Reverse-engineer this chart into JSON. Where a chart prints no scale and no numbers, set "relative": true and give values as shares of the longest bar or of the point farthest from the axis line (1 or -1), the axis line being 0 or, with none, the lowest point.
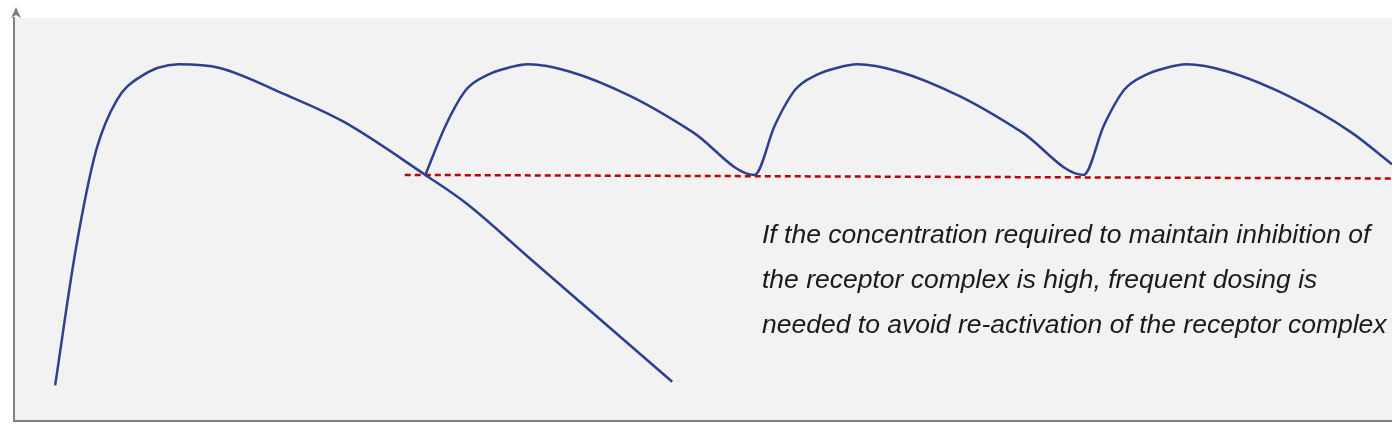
{
  "chart_data": {
    "type": "line",
    "relative": true,
    "legend": false,
    "grid": false,
    "marker": "none",
    "categories": [
      null,
      null,
      null,
      null,
      null,
      null,
      null,
      null,
      null,
      null,
      null,
      null,
      null,
      null,
      null,
      null,
      null,
      null,
      null,
      null,
      null,
      null,
      null,
      null,
      null,
      null,
      null,
      null,
      null,
      null,
      null,
      null,
      null,
      null,
      null,
      null,
      null,
      null,
      null,
      null,
      null,
      null,
      null,
      null,
      null,
      null,
      null,
      null,
      null,
      null,
      null,
      null,
      null,
      null,
      null,
      null,
      null,
      null,
      null,
      null,
      null,
      null,
      null,
      null,
      null,
      null,
      null,
      null
    ],
    "series": [
      {
        "color": "#2e3f8f",
        "values": [
          null,
          null,
          0.1,
          0.48,
          0.76,
          0.9,
          0.96,
          null,
          1.0,
          null,
          0.99,
          null,
          null,
          0.92,
          null,
          null,
          0.84,
          null,
          null,
          null,
          0.69,
          null,
          0.61,
          null,
          null,
          0.46,
          null,
          null,
          0.31,
          null,
          null,
          null,
          0.11,
          null,
          null,
          null,
          null,
          null,
          null,
          null,
          null,
          null,
          null,
          null,
          null,
          null,
          null,
          null,
          null,
          null,
          null,
          null,
          null,
          null,
          null,
          null,
          null,
          null,
          null,
          null,
          null,
          null,
          null,
          null,
          null,
          null,
          null,
          null
        ]
      },
      {
        "color": "#2e3f8f",
        "values": [
          null,
          null,
          null,
          null,
          null,
          null,
          null,
          null,
          null,
          null,
          null,
          null,
          null,
          null,
          null,
          null,
          null,
          null,
          null,
          null,
          0.69,
          0.83,
          0.93,
          0.97,
          0.99,
          1.0,
          null,
          0.98,
          null,
          null,
          0.91,
          null,
          null,
          0.81,
          null,
          null,
          0.69,
          0.83,
          0.93,
          0.97,
          0.99,
          1.0,
          null,
          0.98,
          null,
          null,
          0.91,
          null,
          null,
          0.81,
          null,
          null,
          0.69,
          0.83,
          0.93,
          0.97,
          0.99,
          1.0,
          null,
          0.98,
          null,
          null,
          0.91,
          null,
          null,
          0.81,
          null,
          0.72
        ]
      },
      {
        "type": "line",
        "color": "#c00000",
        "line_style": "dashed",
        "values": [
          null,
          null,
          null,
          null,
          null,
          null,
          null,
          null,
          null,
          null,
          null,
          null,
          null,
          null,
          null,
          null,
          null,
          null,
          null,
          0.69,
          null,
          null,
          null,
          null,
          null,
          null,
          null,
          null,
          null,
          null,
          null,
          null,
          null,
          null,
          null,
          null,
          null,
          null,
          null,
          null,
          null,
          null,
          null,
          null,
          null,
          null,
          null,
          null,
          null,
          null,
          null,
          null,
          null,
          null,
          null,
          null,
          null,
          null,
          null,
          null,
          null,
          null,
          null,
          null,
          null,
          null,
          null,
          0.68
        ]
      }
    ],
    "annotations": [
      "If the concentration required to maintain inhibition of the receptor complex is high, frequent dosing is needed to avoid re-activation of the receptor complex"
    ]
  }
}
